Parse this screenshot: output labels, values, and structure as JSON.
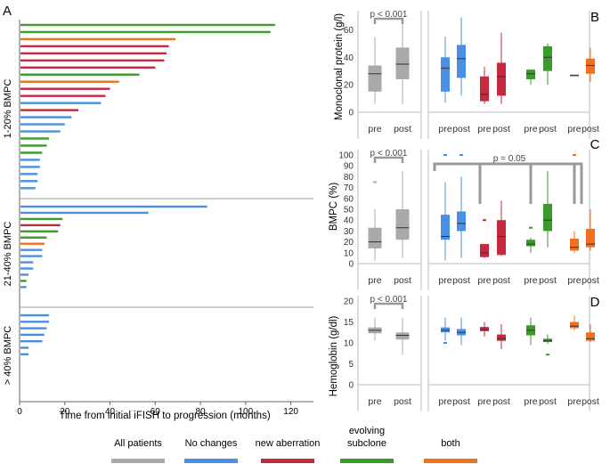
{
  "colors": {
    "all_patients": "#a9a9a9",
    "no_changes": "#4a90e2",
    "new_aberration": "#c8283c",
    "evolving_subclone": "#3a9a2a",
    "both": "#f07020",
    "axis": "#666666",
    "grid": "#999999"
  },
  "legend": {
    "items": [
      {
        "key": "all_patients",
        "label": "All patients"
      },
      {
        "key": "no_changes",
        "label": "No changes"
      },
      {
        "key": "new_aberration",
        "label": "new aberration"
      },
      {
        "key": "evolving_subclone",
        "label": "evolving\nsubclone"
      },
      {
        "key": "both",
        "label": "both"
      }
    ]
  },
  "chart_data": [
    {
      "id": "A",
      "type": "bar",
      "orientation": "horizontal",
      "panel_label": "A",
      "xlabel": "Time from initial iFISH to progression (months)",
      "xlim": [
        0,
        130
      ],
      "xticks": [
        0,
        20,
        40,
        60,
        80,
        100,
        120
      ],
      "groups": [
        {
          "label": "1-20% BMPC",
          "bars": [
            {
              "value": 113,
              "category": "evolving_subclone"
            },
            {
              "value": 111,
              "category": "evolving_subclone"
            },
            {
              "value": 69,
              "category": "both"
            },
            {
              "value": 66,
              "category": "new_aberration"
            },
            {
              "value": 65,
              "category": "new_aberration"
            },
            {
              "value": 64,
              "category": "new_aberration"
            },
            {
              "value": 60,
              "category": "new_aberration"
            },
            {
              "value": 53,
              "category": "evolving_subclone"
            },
            {
              "value": 44,
              "category": "both"
            },
            {
              "value": 40,
              "category": "new_aberration"
            },
            {
              "value": 38,
              "category": "new_aberration"
            },
            {
              "value": 36,
              "category": "no_changes"
            },
            {
              "value": 26,
              "category": "new_aberration"
            },
            {
              "value": 23,
              "category": "no_changes"
            },
            {
              "value": 20,
              "category": "no_changes"
            },
            {
              "value": 18,
              "category": "no_changes"
            },
            {
              "value": 13,
              "category": "evolving_subclone"
            },
            {
              "value": 12,
              "category": "evolving_subclone"
            },
            {
              "value": 10,
              "category": "evolving_subclone"
            },
            {
              "value": 9,
              "category": "no_changes"
            },
            {
              "value": 9,
              "category": "no_changes"
            },
            {
              "value": 8,
              "category": "no_changes"
            },
            {
              "value": 8,
              "category": "no_changes"
            },
            {
              "value": 7,
              "category": "no_changes"
            }
          ]
        },
        {
          "label": "21-40% BMPC",
          "bars": [
            {
              "value": 83,
              "category": "no_changes"
            },
            {
              "value": 57,
              "category": "no_changes"
            },
            {
              "value": 19,
              "category": "evolving_subclone"
            },
            {
              "value": 18,
              "category": "new_aberration"
            },
            {
              "value": 17,
              "category": "evolving_subclone"
            },
            {
              "value": 12,
              "category": "evolving_subclone"
            },
            {
              "value": 11,
              "category": "both"
            },
            {
              "value": 10,
              "category": "no_changes"
            },
            {
              "value": 10,
              "category": "no_changes"
            },
            {
              "value": 6,
              "category": "no_changes"
            },
            {
              "value": 6,
              "category": "no_changes"
            },
            {
              "value": 4,
              "category": "no_changes"
            },
            {
              "value": 3,
              "category": "evolving_subclone"
            },
            {
              "value": 3,
              "category": "no_changes"
            }
          ]
        },
        {
          "label": "> 40% BMPC",
          "bars": [
            {
              "value": 13,
              "category": "no_changes"
            },
            {
              "value": 13,
              "category": "no_changes"
            },
            {
              "value": 12,
              "category": "no_changes"
            },
            {
              "value": 11,
              "category": "no_changes"
            },
            {
              "value": 10,
              "category": "no_changes"
            },
            {
              "value": 4,
              "category": "no_changes"
            },
            {
              "value": 4,
              "category": "no_changes"
            }
          ]
        }
      ]
    },
    {
      "id": "B",
      "type": "box",
      "panel_label": "B",
      "ylabel": "Monoclonal protein (g/l)",
      "ylim": [
        0,
        70
      ],
      "yticks": [
        0,
        20,
        40,
        60
      ],
      "annotations": [
        {
          "text": "p < 0.001",
          "between": [
            0,
            1
          ]
        }
      ],
      "boxes": [
        {
          "category": "all_patients",
          "label": "pre",
          "min": 6,
          "q1": 15,
          "median": 28,
          "q3": 34,
          "max": 55
        },
        {
          "category": "all_patients",
          "label": "post",
          "min": 6,
          "q1": 24,
          "median": 35,
          "q3": 47,
          "max": 66
        },
        {
          "category": "no_changes",
          "label": "pre",
          "min": 7,
          "q1": 15,
          "median": 32,
          "q3": 40,
          "max": 55
        },
        {
          "category": "no_changes",
          "label": "post",
          "min": 12,
          "q1": 25,
          "median": 39,
          "q3": 49,
          "max": 69
        },
        {
          "category": "new_aberration",
          "label": "pre",
          "min": 6,
          "q1": 8,
          "median": 13,
          "q3": 26,
          "max": 33
        },
        {
          "category": "new_aberration",
          "label": "post",
          "min": 6,
          "q1": 12,
          "median": 26,
          "q3": 36,
          "max": 58
        },
        {
          "category": "evolving_subclone",
          "label": "pre",
          "min": 20,
          "q1": 24,
          "median": 28,
          "q3": 31,
          "max": 31
        },
        {
          "category": "evolving_subclone",
          "label": "post",
          "min": 20,
          "q1": 30,
          "median": 40,
          "q3": 48,
          "max": 50
        },
        {
          "category": "both",
          "label": "pre",
          "min": 27,
          "q1": 27,
          "median": 27,
          "q3": 27,
          "max": 27
        },
        {
          "category": "both",
          "label": "post",
          "min": 22,
          "q1": 28,
          "median": 34,
          "q3": 39,
          "max": 47
        }
      ]
    },
    {
      "id": "C",
      "type": "box",
      "panel_label": "C",
      "ylabel": "BMPC (%)",
      "ylim": [
        0,
        100
      ],
      "yticks": [
        0,
        10,
        20,
        30,
        40,
        50,
        60,
        70,
        80,
        90,
        100
      ],
      "annotations": [
        {
          "text": "p < 0.001",
          "between": [
            0,
            1
          ]
        },
        {
          "text": "p = 0.05",
          "between": [
            2,
            9
          ]
        }
      ],
      "boxes": [
        {
          "category": "all_patients",
          "label": "pre",
          "min": 3,
          "q1": 14,
          "median": 20,
          "q3": 33,
          "max": 50,
          "outliers": [
            75
          ]
        },
        {
          "category": "all_patients",
          "label": "post",
          "min": 5,
          "q1": 22,
          "median": 33,
          "q3": 50,
          "max": 85
        },
        {
          "category": "no_changes",
          "label": "pre",
          "min": 3,
          "q1": 22,
          "median": 25,
          "q3": 45,
          "max": 75,
          "outliers": [
            100
          ]
        },
        {
          "category": "no_changes",
          "label": "post",
          "min": 5,
          "q1": 30,
          "median": 37,
          "q3": 48,
          "max": 80,
          "outliers": [
            100
          ]
        },
        {
          "category": "new_aberration",
          "label": "pre",
          "min": 5,
          "q1": 6,
          "median": 10,
          "q3": 18,
          "max": 18,
          "outliers": [
            40
          ]
        },
        {
          "category": "new_aberration",
          "label": "post",
          "min": 7,
          "q1": 8,
          "median": 25,
          "q3": 40,
          "max": 58
        },
        {
          "category": "evolving_subclone",
          "label": "pre",
          "min": 10,
          "q1": 16,
          "median": 18,
          "q3": 22,
          "max": 24,
          "outliers": [
            33
          ]
        },
        {
          "category": "evolving_subclone",
          "label": "post",
          "min": 15,
          "q1": 30,
          "median": 40,
          "q3": 55,
          "max": 85
        },
        {
          "category": "both",
          "label": "pre",
          "min": 10,
          "q1": 12,
          "median": 15,
          "q3": 23,
          "max": 30,
          "outliers": [
            100
          ]
        },
        {
          "category": "both",
          "label": "post",
          "min": 12,
          "q1": 15,
          "median": 18,
          "q3": 32,
          "max": 50
        }
      ]
    },
    {
      "id": "D",
      "type": "box",
      "panel_label": "D",
      "ylabel": "Hemoglobin (g/dl)",
      "ylim": [
        0,
        20
      ],
      "yticks": [
        0,
        5,
        10,
        15,
        20
      ],
      "annotations": [
        {
          "text": "p < 0.001",
          "between": [
            0,
            1
          ]
        }
      ],
      "boxes": [
        {
          "category": "all_patients",
          "label": "pre",
          "min": 10.5,
          "q1": 12.3,
          "median": 13,
          "q3": 13.7,
          "max": 16
        },
        {
          "category": "all_patients",
          "label": "post",
          "min": 7.2,
          "q1": 10.8,
          "median": 11.8,
          "q3": 12.5,
          "max": 16
        },
        {
          "category": "no_changes",
          "label": "pre",
          "min": 10.5,
          "q1": 12.5,
          "median": 13,
          "q3": 13.7,
          "max": 16,
          "outliers": [
            10
          ]
        },
        {
          "category": "no_changes",
          "label": "post",
          "min": 9.5,
          "q1": 11.8,
          "median": 12.5,
          "q3": 13.3,
          "max": 16
        },
        {
          "category": "new_aberration",
          "label": "pre",
          "min": 11.5,
          "q1": 12.8,
          "median": 13.2,
          "q3": 13.8,
          "max": 15
        },
        {
          "category": "new_aberration",
          "label": "post",
          "min": 8.5,
          "q1": 10.5,
          "median": 11,
          "q3": 12,
          "max": 14.5
        },
        {
          "category": "evolving_subclone",
          "label": "pre",
          "min": 9.5,
          "q1": 11.8,
          "median": 13,
          "q3": 14.2,
          "max": 16
        },
        {
          "category": "evolving_subclone",
          "label": "post",
          "min": 9.8,
          "q1": 10.2,
          "median": 10.5,
          "q3": 11,
          "max": 12,
          "outliers": [
            7.2
          ]
        },
        {
          "category": "both",
          "label": "pre",
          "min": 13,
          "q1": 13.5,
          "median": 14,
          "q3": 15,
          "max": 16.5
        },
        {
          "category": "both",
          "label": "post",
          "min": 10.2,
          "q1": 10.5,
          "median": 11,
          "q3": 12.5,
          "max": 14.5
        }
      ]
    }
  ]
}
